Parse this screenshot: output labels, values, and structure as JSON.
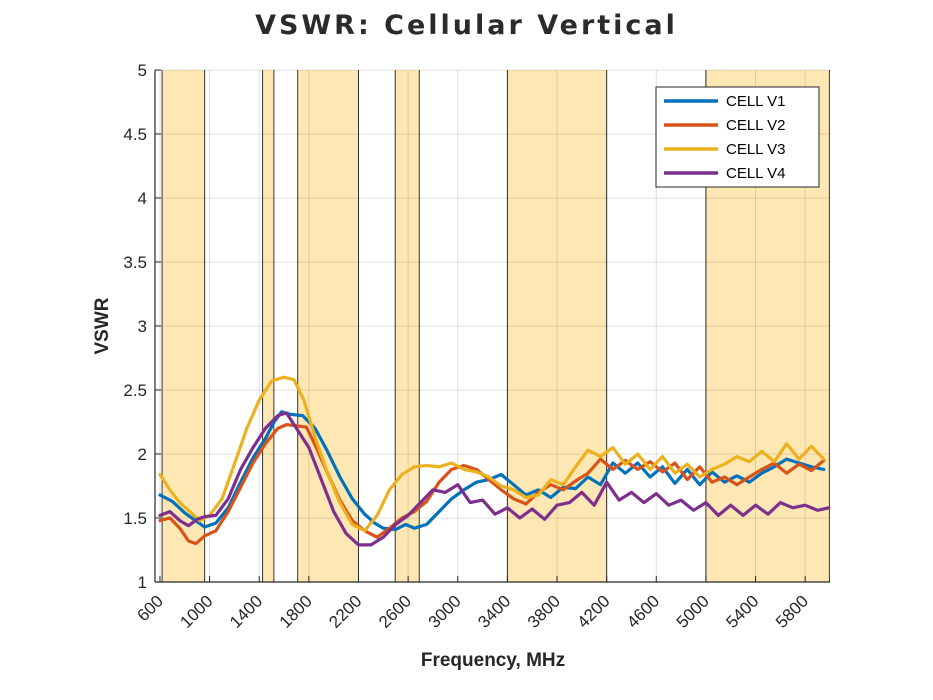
{
  "chart_data": {
    "type": "line",
    "title": "VSWR: Cellular Vertical",
    "xlabel": "Frequency, MHz",
    "ylabel": "VSWR",
    "xlim": [
      560,
      6000
    ],
    "ylim": [
      1,
      5
    ],
    "xticks": [
      600,
      1000,
      1400,
      1800,
      2200,
      2600,
      3000,
      3400,
      3800,
      4200,
      4600,
      5000,
      5400,
      5800
    ],
    "yticks": [
      1,
      1.5,
      2,
      2.5,
      3,
      3.5,
      4,
      4.5,
      5
    ],
    "ytick_labels": [
      "1",
      "1.5",
      "2",
      "2.5",
      "3",
      "3.5",
      "4",
      "4.5",
      "5"
    ],
    "grid": true,
    "legend_position": "top-right",
    "highlight_bands": [
      [
        617,
        960
      ],
      [
        1427,
        1518
      ],
      [
        1710,
        2200
      ],
      [
        2496,
        2690
      ],
      [
        3400,
        4200
      ],
      [
        5000,
        5995
      ]
    ],
    "band_color": "#FFE7B3",
    "series": [
      {
        "name": "CELL V1",
        "color": "#0072BD",
        "points": [
          [
            600,
            1.68
          ],
          [
            700,
            1.63
          ],
          [
            800,
            1.54
          ],
          [
            900,
            1.47
          ],
          [
            960,
            1.43
          ],
          [
            1050,
            1.46
          ],
          [
            1150,
            1.58
          ],
          [
            1250,
            1.78
          ],
          [
            1350,
            1.97
          ],
          [
            1450,
            2.12
          ],
          [
            1520,
            2.25
          ],
          [
            1580,
            2.33
          ],
          [
            1650,
            2.31
          ],
          [
            1750,
            2.3
          ],
          [
            1850,
            2.2
          ],
          [
            1950,
            2.02
          ],
          [
            2050,
            1.82
          ],
          [
            2150,
            1.65
          ],
          [
            2250,
            1.53
          ],
          [
            2330,
            1.46
          ],
          [
            2400,
            1.42
          ],
          [
            2500,
            1.41
          ],
          [
            2580,
            1.45
          ],
          [
            2650,
            1.42
          ],
          [
            2750,
            1.45
          ],
          [
            2850,
            1.55
          ],
          [
            2950,
            1.65
          ],
          [
            3050,
            1.72
          ],
          [
            3150,
            1.78
          ],
          [
            3250,
            1.8
          ],
          [
            3350,
            1.84
          ],
          [
            3450,
            1.76
          ],
          [
            3550,
            1.68
          ],
          [
            3650,
            1.72
          ],
          [
            3750,
            1.66
          ],
          [
            3850,
            1.74
          ],
          [
            3950,
            1.73
          ],
          [
            4050,
            1.82
          ],
          [
            4150,
            1.76
          ],
          [
            4250,
            1.93
          ],
          [
            4350,
            1.85
          ],
          [
            4450,
            1.93
          ],
          [
            4550,
            1.82
          ],
          [
            4650,
            1.9
          ],
          [
            4750,
            1.77
          ],
          [
            4850,
            1.88
          ],
          [
            4950,
            1.76
          ],
          [
            5050,
            1.86
          ],
          [
            5150,
            1.78
          ],
          [
            5250,
            1.83
          ],
          [
            5350,
            1.78
          ],
          [
            5450,
            1.85
          ],
          [
            5550,
            1.9
          ],
          [
            5650,
            1.96
          ],
          [
            5750,
            1.93
          ],
          [
            5850,
            1.9
          ],
          [
            5950,
            1.88
          ]
        ]
      },
      {
        "name": "CELL V2",
        "color": "#D95319",
        "points": [
          [
            600,
            1.48
          ],
          [
            680,
            1.5
          ],
          [
            760,
            1.42
          ],
          [
            830,
            1.32
          ],
          [
            890,
            1.3
          ],
          [
            960,
            1.36
          ],
          [
            1050,
            1.4
          ],
          [
            1150,
            1.55
          ],
          [
            1250,
            1.74
          ],
          [
            1350,
            1.93
          ],
          [
            1450,
            2.08
          ],
          [
            1550,
            2.2
          ],
          [
            1620,
            2.23
          ],
          [
            1700,
            2.22
          ],
          [
            1780,
            2.21
          ],
          [
            1860,
            2.05
          ],
          [
            1950,
            1.85
          ],
          [
            2050,
            1.64
          ],
          [
            2150,
            1.48
          ],
          [
            2250,
            1.4
          ],
          [
            2350,
            1.35
          ],
          [
            2450,
            1.42
          ],
          [
            2550,
            1.5
          ],
          [
            2650,
            1.55
          ],
          [
            2750,
            1.63
          ],
          [
            2850,
            1.78
          ],
          [
            2950,
            1.88
          ],
          [
            3050,
            1.91
          ],
          [
            3150,
            1.88
          ],
          [
            3250,
            1.8
          ],
          [
            3350,
            1.72
          ],
          [
            3450,
            1.65
          ],
          [
            3550,
            1.61
          ],
          [
            3650,
            1.7
          ],
          [
            3750,
            1.76
          ],
          [
            3850,
            1.72
          ],
          [
            3950,
            1.79
          ],
          [
            4050,
            1.85
          ],
          [
            4150,
            1.96
          ],
          [
            4250,
            1.88
          ],
          [
            4350,
            1.95
          ],
          [
            4450,
            1.88
          ],
          [
            4550,
            1.94
          ],
          [
            4650,
            1.86
          ],
          [
            4750,
            1.93
          ],
          [
            4850,
            1.8
          ],
          [
            4950,
            1.9
          ],
          [
            5050,
            1.78
          ],
          [
            5150,
            1.82
          ],
          [
            5250,
            1.76
          ],
          [
            5350,
            1.82
          ],
          [
            5450,
            1.88
          ],
          [
            5550,
            1.93
          ],
          [
            5650,
            1.85
          ],
          [
            5750,
            1.92
          ],
          [
            5850,
            1.87
          ],
          [
            5950,
            1.95
          ]
        ]
      },
      {
        "name": "CELL V3",
        "color": "#EDB120",
        "points": [
          [
            600,
            1.84
          ],
          [
            680,
            1.72
          ],
          [
            760,
            1.62
          ],
          [
            840,
            1.55
          ],
          [
            920,
            1.48
          ],
          [
            1000,
            1.52
          ],
          [
            1100,
            1.65
          ],
          [
            1200,
            1.92
          ],
          [
            1300,
            2.2
          ],
          [
            1400,
            2.42
          ],
          [
            1500,
            2.57
          ],
          [
            1600,
            2.6
          ],
          [
            1680,
            2.58
          ],
          [
            1760,
            2.42
          ],
          [
            1850,
            2.13
          ],
          [
            1950,
            1.85
          ],
          [
            2050,
            1.62
          ],
          [
            2150,
            1.45
          ],
          [
            2250,
            1.4
          ],
          [
            2350,
            1.52
          ],
          [
            2450,
            1.72
          ],
          [
            2550,
            1.84
          ],
          [
            2650,
            1.9
          ],
          [
            2750,
            1.91
          ],
          [
            2850,
            1.9
          ],
          [
            2950,
            1.93
          ],
          [
            3050,
            1.88
          ],
          [
            3150,
            1.86
          ],
          [
            3250,
            1.82
          ],
          [
            3350,
            1.75
          ],
          [
            3450,
            1.72
          ],
          [
            3550,
            1.66
          ],
          [
            3650,
            1.68
          ],
          [
            3750,
            1.8
          ],
          [
            3850,
            1.76
          ],
          [
            3950,
            1.9
          ],
          [
            4050,
            2.03
          ],
          [
            4150,
            1.98
          ],
          [
            4250,
            2.05
          ],
          [
            4350,
            1.92
          ],
          [
            4450,
            2.0
          ],
          [
            4550,
            1.88
          ],
          [
            4650,
            1.98
          ],
          [
            4750,
            1.85
          ],
          [
            4850,
            1.92
          ],
          [
            4950,
            1.82
          ],
          [
            5050,
            1.88
          ],
          [
            5150,
            1.92
          ],
          [
            5250,
            1.98
          ],
          [
            5350,
            1.94
          ],
          [
            5450,
            2.02
          ],
          [
            5550,
            1.94
          ],
          [
            5650,
            2.08
          ],
          [
            5750,
            1.96
          ],
          [
            5850,
            2.06
          ],
          [
            5950,
            1.96
          ]
        ]
      },
      {
        "name": "CELL V4",
        "color": "#7E2F8E",
        "points": [
          [
            600,
            1.52
          ],
          [
            680,
            1.55
          ],
          [
            760,
            1.48
          ],
          [
            830,
            1.44
          ],
          [
            900,
            1.49
          ],
          [
            960,
            1.51
          ],
          [
            1050,
            1.52
          ],
          [
            1150,
            1.65
          ],
          [
            1250,
            1.88
          ],
          [
            1350,
            2.05
          ],
          [
            1450,
            2.2
          ],
          [
            1550,
            2.3
          ],
          [
            1620,
            2.32
          ],
          [
            1700,
            2.2
          ],
          [
            1800,
            2.05
          ],
          [
            1900,
            1.8
          ],
          [
            2000,
            1.55
          ],
          [
            2100,
            1.38
          ],
          [
            2200,
            1.29
          ],
          [
            2300,
            1.29
          ],
          [
            2400,
            1.35
          ],
          [
            2500,
            1.45
          ],
          [
            2600,
            1.52
          ],
          [
            2700,
            1.62
          ],
          [
            2800,
            1.72
          ],
          [
            2900,
            1.7
          ],
          [
            3000,
            1.76
          ],
          [
            3100,
            1.62
          ],
          [
            3200,
            1.64
          ],
          [
            3300,
            1.53
          ],
          [
            3400,
            1.58
          ],
          [
            3500,
            1.5
          ],
          [
            3600,
            1.57
          ],
          [
            3700,
            1.49
          ],
          [
            3800,
            1.6
          ],
          [
            3900,
            1.62
          ],
          [
            4000,
            1.7
          ],
          [
            4100,
            1.6
          ],
          [
            4200,
            1.78
          ],
          [
            4300,
            1.64
          ],
          [
            4400,
            1.7
          ],
          [
            4500,
            1.62
          ],
          [
            4600,
            1.69
          ],
          [
            4700,
            1.6
          ],
          [
            4800,
            1.64
          ],
          [
            4900,
            1.56
          ],
          [
            5000,
            1.62
          ],
          [
            5100,
            1.52
          ],
          [
            5200,
            1.6
          ],
          [
            5300,
            1.52
          ],
          [
            5400,
            1.6
          ],
          [
            5500,
            1.53
          ],
          [
            5600,
            1.62
          ],
          [
            5700,
            1.58
          ],
          [
            5800,
            1.6
          ],
          [
            5900,
            1.56
          ],
          [
            5990,
            1.58
          ]
        ]
      }
    ]
  }
}
